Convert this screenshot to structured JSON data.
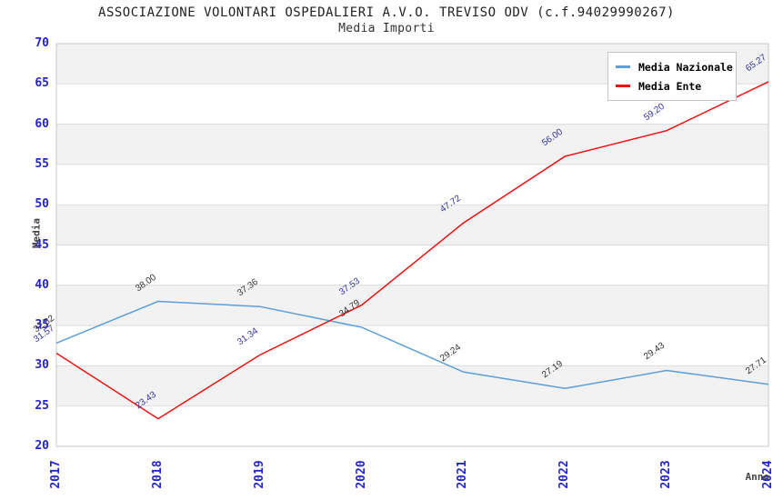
{
  "title": "ASSOCIAZIONE VOLONTARI OSPEDALIERI A.V.O. TREVISO ODV (c.f.94029990267)",
  "subtitle": "Media Importi",
  "y_axis": {
    "label": "Media",
    "ticks": [
      20,
      25,
      30,
      35,
      40,
      45,
      50,
      55,
      60,
      65,
      70
    ]
  },
  "x_axis": {
    "label": "Anno",
    "ticks": [
      "2017",
      "2018",
      "2019",
      "2020",
      "2021",
      "2022",
      "2023",
      "2024"
    ]
  },
  "legend": {
    "items": [
      {
        "label": "Media Nazionale",
        "color": "#5C9FD9"
      },
      {
        "label": "Media Ente",
        "color": "#EE1111"
      }
    ]
  },
  "colors": {
    "tick_label": "#2424CC",
    "band": "#F2F2F2",
    "gridline": "#DCDCDC",
    "plot_border": "#C8C8C8",
    "nazionale_line": "#5C9FD9",
    "ente_line": "#EE1111",
    "nazionale_data_label": "#333333",
    "ente_data_label": "#333399"
  },
  "chart_data": {
    "type": "line",
    "title": "ASSOCIAZIONE VOLONTARI OSPEDALIERI A.V.O. TREVISO ODV (c.f.94029990267)",
    "subtitle": "Media Importi",
    "xlabel": "Anno",
    "ylabel": "Media",
    "x": [
      "2017",
      "2018",
      "2019",
      "2020",
      "2021",
      "2022",
      "2023",
      "2024"
    ],
    "series": [
      {
        "name": "Media Nazionale",
        "color": "#5C9FD9",
        "label_color": "#333333",
        "values": [
          32.82,
          38.0,
          37.36,
          34.79,
          29.24,
          27.19,
          29.43,
          27.71
        ],
        "value_labels": [
          "32.82",
          "38.00",
          "37.36",
          "34.79",
          "29.24",
          "27.19",
          "29.43",
          "27.71"
        ]
      },
      {
        "name": "Media Ente",
        "color": "#EE1111",
        "label_color": "#333399",
        "values": [
          31.57,
          23.43,
          31.34,
          37.53,
          47.72,
          56.0,
          59.2,
          65.27
        ],
        "value_labels": [
          "31.57",
          "23.43",
          "31.34",
          "37.53",
          "47.72",
          "56.00",
          "59.20",
          "65.27"
        ]
      }
    ],
    "ylim": [
      20,
      70
    ],
    "y_tick_step": 5,
    "grid": "horizontal-bands-alternating",
    "legend_position": "top-right-inside"
  }
}
